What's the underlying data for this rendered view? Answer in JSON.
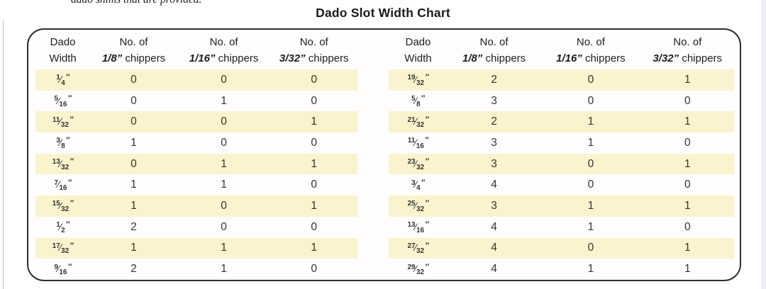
{
  "page": {
    "top_partial_text": "dado shims that are provided.",
    "title": "Dado Slot Width Chart"
  },
  "table": {
    "headers": {
      "width_col_line1": "Dado",
      "width_col_line2": "Width",
      "no_of": "No. of",
      "chippers_word": "chippers",
      "chipper_sizes": [
        "1/8",
        "1/16",
        "3/32"
      ],
      "quote_mark": "”",
      "inch_mark": "″"
    },
    "left_rows": [
      {
        "dado_width": "1/4",
        "chippers_1_8": "0",
        "chippers_1_16": "0",
        "chippers_3_32": "0"
      },
      {
        "dado_width": "5/16",
        "chippers_1_8": "0",
        "chippers_1_16": "1",
        "chippers_3_32": "0"
      },
      {
        "dado_width": "11/32",
        "chippers_1_8": "0",
        "chippers_1_16": "0",
        "chippers_3_32": "1"
      },
      {
        "dado_width": "3/8",
        "chippers_1_8": "1",
        "chippers_1_16": "0",
        "chippers_3_32": "0"
      },
      {
        "dado_width": "13/32",
        "chippers_1_8": "0",
        "chippers_1_16": "1",
        "chippers_3_32": "1"
      },
      {
        "dado_width": "7/16",
        "chippers_1_8": "1",
        "chippers_1_16": "1",
        "chippers_3_32": "0"
      },
      {
        "dado_width": "15/32",
        "chippers_1_8": "1",
        "chippers_1_16": "0",
        "chippers_3_32": "1"
      },
      {
        "dado_width": "1/2",
        "chippers_1_8": "2",
        "chippers_1_16": "0",
        "chippers_3_32": "0"
      },
      {
        "dado_width": "17/32",
        "chippers_1_8": "1",
        "chippers_1_16": "1",
        "chippers_3_32": "1"
      },
      {
        "dado_width": "9/16",
        "chippers_1_8": "2",
        "chippers_1_16": "1",
        "chippers_3_32": "0"
      }
    ],
    "right_rows": [
      {
        "dado_width": "19/32",
        "chippers_1_8": "2",
        "chippers_1_16": "0",
        "chippers_3_32": "1"
      },
      {
        "dado_width": "5/8",
        "chippers_1_8": "3",
        "chippers_1_16": "0",
        "chippers_3_32": "0"
      },
      {
        "dado_width": "21/32",
        "chippers_1_8": "2",
        "chippers_1_16": "1",
        "chippers_3_32": "1"
      },
      {
        "dado_width": "11/16",
        "chippers_1_8": "3",
        "chippers_1_16": "1",
        "chippers_3_32": "0"
      },
      {
        "dado_width": "23/32",
        "chippers_1_8": "3",
        "chippers_1_16": "0",
        "chippers_3_32": "1"
      },
      {
        "dado_width": "3/4",
        "chippers_1_8": "4",
        "chippers_1_16": "0",
        "chippers_3_32": "0"
      },
      {
        "dado_width": "25/32",
        "chippers_1_8": "3",
        "chippers_1_16": "1",
        "chippers_3_32": "1"
      },
      {
        "dado_width": "13/16",
        "chippers_1_8": "4",
        "chippers_1_16": "1",
        "chippers_3_32": "0"
      },
      {
        "dado_width": "27/32",
        "chippers_1_8": "4",
        "chippers_1_16": "0",
        "chippers_3_32": "1"
      },
      {
        "dado_width": "29/32",
        "chippers_1_8": "4",
        "chippers_1_16": "1",
        "chippers_3_32": "1"
      }
    ]
  },
  "colors": {
    "row_highlight": "#FAF3CD",
    "table_border": "#2E2E2E",
    "page_right_strip": "#ECEEF5"
  }
}
